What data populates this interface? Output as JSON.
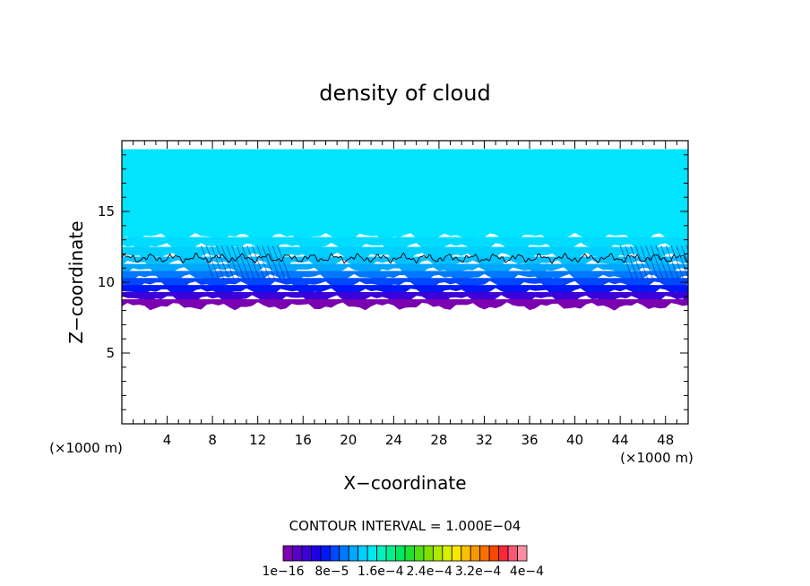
{
  "chart_data": {
    "type": "heatmap",
    "title": "density of cloud",
    "xlabel": "X−coordinate",
    "ylabel": "Z−coordinate",
    "xlim": [
      0,
      50
    ],
    "ylim": [
      0,
      20
    ],
    "x_ticks": [
      "4",
      "8",
      "12",
      "16",
      "20",
      "24",
      "28",
      "32",
      "36",
      "40",
      "44",
      "48"
    ],
    "y_ticks": [
      "5",
      "10",
      "15"
    ],
    "x_unit_left": "(×1000 m)",
    "x_unit_right": "(×1000 m)",
    "contour_interval_text": "CONTOUR INTERVAL = 1.000E−04",
    "colorbar_labels": [
      "1e−16",
      "8e−5",
      "1.6e−4",
      "2.4e−4",
      "3.2e−4",
      "4e−4"
    ],
    "colorbar_colors": [
      "#7a00b0",
      "#5a00c8",
      "#3c00d8",
      "#2000e8",
      "#0018f8",
      "#0048ff",
      "#0078ff",
      "#00a8ff",
      "#00d0ff",
      "#00e8f0",
      "#00f0c0",
      "#00f090",
      "#00e860",
      "#20e030",
      "#50e010",
      "#80e000",
      "#b0e800",
      "#d8f000",
      "#f8e800",
      "#f8c000",
      "#f89800",
      "#f87000",
      "#f84800",
      "#f82838",
      "#f85878",
      "#f890a0"
    ],
    "field_profile": {
      "z": [
        8.3,
        8.8,
        9.3,
        9.8,
        10.3,
        10.8,
        11.3,
        11.8,
        12.5,
        13.2,
        19.4
      ],
      "colors": [
        "#7a00b0",
        "#3c00d8",
        "#0018f8",
        "#0048ff",
        "#0078ff",
        "#00a8ff",
        "#00c0ff",
        "#00d0ff",
        "#00dcff",
        "#00e4ff",
        "#00e4ff"
      ]
    },
    "contour_level_z": 11.7
  }
}
